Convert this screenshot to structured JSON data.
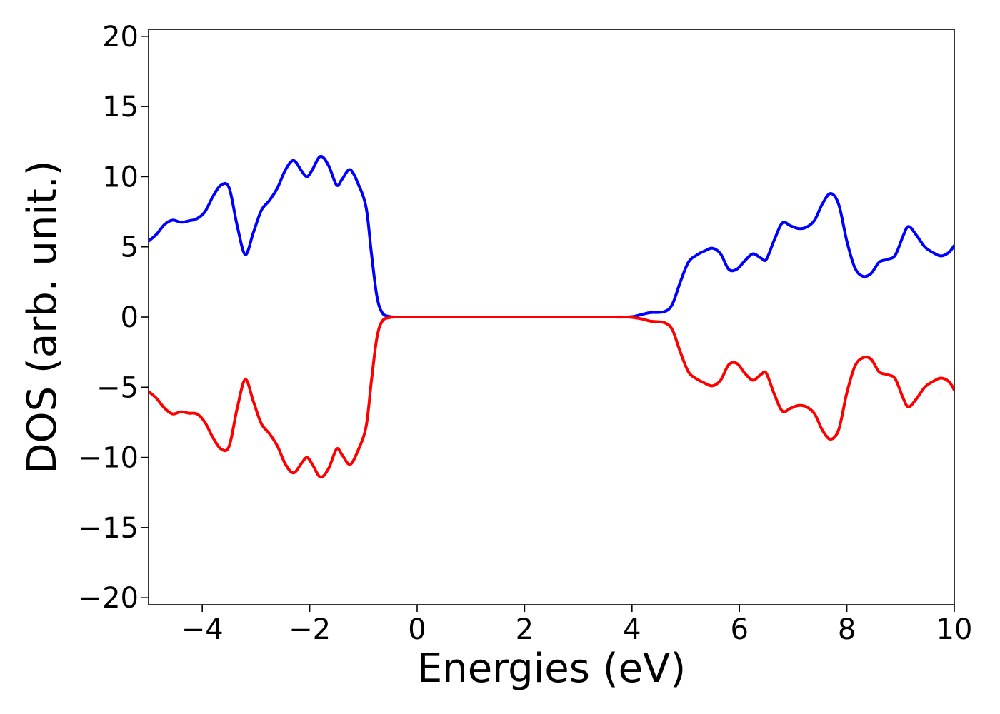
{
  "chart_data": {
    "type": "line",
    "title": "",
    "xlabel": "Energies (eV)",
    "ylabel": "DOS (arb. unit.)",
    "xlim": [
      -5,
      10
    ],
    "ylim": [
      -20.5,
      20.5
    ],
    "grid": false,
    "legend": "none",
    "x_ticks": [
      -4,
      -2,
      0,
      2,
      4,
      6,
      8,
      10
    ],
    "x_tick_labels": [
      "−4",
      "−2",
      "0",
      "2",
      "4",
      "6",
      "8",
      "10"
    ],
    "y_ticks": [
      -20,
      -15,
      -10,
      -5,
      0,
      5,
      10,
      15,
      20
    ],
    "y_tick_labels": [
      "−20",
      "−15",
      "−10",
      "−5",
      "0",
      "5",
      "10",
      "15",
      "20"
    ],
    "series": [
      {
        "color": "#0000ff",
        "points": [
          [
            -5.0,
            5.4
          ],
          [
            -4.85,
            5.9
          ],
          [
            -4.7,
            6.6
          ],
          [
            -4.55,
            6.9
          ],
          [
            -4.4,
            6.75
          ],
          [
            -4.25,
            6.85
          ],
          [
            -4.1,
            7.0
          ],
          [
            -3.95,
            7.5
          ],
          [
            -3.8,
            8.6
          ],
          [
            -3.65,
            9.4
          ],
          [
            -3.5,
            9.2
          ],
          [
            -3.35,
            6.5
          ],
          [
            -3.2,
            4.45
          ],
          [
            -3.05,
            6.0
          ],
          [
            -2.9,
            7.6
          ],
          [
            -2.75,
            8.3
          ],
          [
            -2.6,
            9.2
          ],
          [
            -2.45,
            10.5
          ],
          [
            -2.3,
            11.15
          ],
          [
            -2.15,
            10.4
          ],
          [
            -2.05,
            10.0
          ],
          [
            -1.95,
            10.5
          ],
          [
            -1.8,
            11.45
          ],
          [
            -1.65,
            10.8
          ],
          [
            -1.5,
            9.4
          ],
          [
            -1.4,
            9.8
          ],
          [
            -1.25,
            10.5
          ],
          [
            -1.1,
            9.5
          ],
          [
            -0.95,
            7.8
          ],
          [
            -0.85,
            4.5
          ],
          [
            -0.75,
            1.5
          ],
          [
            -0.65,
            0.3
          ],
          [
            -0.5,
            0.03
          ],
          [
            -0.3,
            0.0
          ],
          [
            0.0,
            0.0
          ],
          [
            1.0,
            0.0
          ],
          [
            2.0,
            0.0
          ],
          [
            3.0,
            0.0
          ],
          [
            3.5,
            0.0
          ],
          [
            3.9,
            0.0
          ],
          [
            4.05,
            0.05
          ],
          [
            4.2,
            0.2
          ],
          [
            4.35,
            0.32
          ],
          [
            4.6,
            0.38
          ],
          [
            4.75,
            0.9
          ],
          [
            4.9,
            2.5
          ],
          [
            5.05,
            3.9
          ],
          [
            5.2,
            4.4
          ],
          [
            5.35,
            4.7
          ],
          [
            5.5,
            4.9
          ],
          [
            5.65,
            4.5
          ],
          [
            5.8,
            3.4
          ],
          [
            5.95,
            3.4
          ],
          [
            6.1,
            4.0
          ],
          [
            6.25,
            4.5
          ],
          [
            6.4,
            4.2
          ],
          [
            6.5,
            4.1
          ],
          [
            6.65,
            5.5
          ],
          [
            6.8,
            6.7
          ],
          [
            6.95,
            6.5
          ],
          [
            7.1,
            6.3
          ],
          [
            7.25,
            6.4
          ],
          [
            7.4,
            6.9
          ],
          [
            7.55,
            8.1
          ],
          [
            7.7,
            8.8
          ],
          [
            7.85,
            8.0
          ],
          [
            8.0,
            5.4
          ],
          [
            8.15,
            3.5
          ],
          [
            8.3,
            2.9
          ],
          [
            8.45,
            3.1
          ],
          [
            8.6,
            3.9
          ],
          [
            8.75,
            4.1
          ],
          [
            8.9,
            4.4
          ],
          [
            9.05,
            5.8
          ],
          [
            9.15,
            6.45
          ],
          [
            9.3,
            5.8
          ],
          [
            9.45,
            5.0
          ],
          [
            9.6,
            4.6
          ],
          [
            9.75,
            4.35
          ],
          [
            9.9,
            4.6
          ],
          [
            10.0,
            5.1
          ]
        ]
      },
      {
        "color": "#ff0000",
        "points": [
          [
            -5.0,
            -5.3
          ],
          [
            -4.85,
            -5.8
          ],
          [
            -4.7,
            -6.5
          ],
          [
            -4.55,
            -6.9
          ],
          [
            -4.4,
            -6.75
          ],
          [
            -4.25,
            -6.85
          ],
          [
            -4.1,
            -6.9
          ],
          [
            -3.95,
            -7.5
          ],
          [
            -3.8,
            -8.6
          ],
          [
            -3.65,
            -9.4
          ],
          [
            -3.5,
            -9.2
          ],
          [
            -3.35,
            -6.5
          ],
          [
            -3.2,
            -4.45
          ],
          [
            -3.05,
            -6.0
          ],
          [
            -2.9,
            -7.6
          ],
          [
            -2.75,
            -8.3
          ],
          [
            -2.6,
            -9.2
          ],
          [
            -2.45,
            -10.5
          ],
          [
            -2.3,
            -11.1
          ],
          [
            -2.15,
            -10.4
          ],
          [
            -2.05,
            -10.0
          ],
          [
            -1.95,
            -10.5
          ],
          [
            -1.8,
            -11.4
          ],
          [
            -1.65,
            -10.8
          ],
          [
            -1.5,
            -9.4
          ],
          [
            -1.4,
            -9.8
          ],
          [
            -1.25,
            -10.5
          ],
          [
            -1.1,
            -9.5
          ],
          [
            -0.95,
            -7.8
          ],
          [
            -0.85,
            -4.5
          ],
          [
            -0.75,
            -1.5
          ],
          [
            -0.65,
            -0.3
          ],
          [
            -0.5,
            -0.03
          ],
          [
            -0.3,
            0.0
          ],
          [
            0.0,
            0.0
          ],
          [
            1.0,
            0.0
          ],
          [
            2.0,
            0.0
          ],
          [
            3.0,
            0.0
          ],
          [
            3.5,
            0.0
          ],
          [
            3.9,
            0.0
          ],
          [
            4.05,
            -0.05
          ],
          [
            4.2,
            -0.15
          ],
          [
            4.35,
            -0.3
          ],
          [
            4.6,
            -0.4
          ],
          [
            4.75,
            -0.9
          ],
          [
            4.9,
            -2.5
          ],
          [
            5.05,
            -3.9
          ],
          [
            5.2,
            -4.4
          ],
          [
            5.35,
            -4.7
          ],
          [
            5.5,
            -4.9
          ],
          [
            5.65,
            -4.5
          ],
          [
            5.8,
            -3.4
          ],
          [
            5.95,
            -3.3
          ],
          [
            6.1,
            -4.0
          ],
          [
            6.25,
            -4.5
          ],
          [
            6.4,
            -4.1
          ],
          [
            6.5,
            -4.0
          ],
          [
            6.65,
            -5.5
          ],
          [
            6.8,
            -6.7
          ],
          [
            6.95,
            -6.5
          ],
          [
            7.1,
            -6.3
          ],
          [
            7.25,
            -6.4
          ],
          [
            7.4,
            -6.9
          ],
          [
            7.55,
            -8.1
          ],
          [
            7.7,
            -8.7
          ],
          [
            7.85,
            -8.0
          ],
          [
            8.0,
            -5.4
          ],
          [
            8.15,
            -3.5
          ],
          [
            8.3,
            -2.9
          ],
          [
            8.45,
            -3.0
          ],
          [
            8.6,
            -3.9
          ],
          [
            8.75,
            -4.1
          ],
          [
            8.9,
            -4.4
          ],
          [
            9.05,
            -5.8
          ],
          [
            9.15,
            -6.4
          ],
          [
            9.3,
            -5.8
          ],
          [
            9.45,
            -5.0
          ],
          [
            9.6,
            -4.6
          ],
          [
            9.75,
            -4.35
          ],
          [
            9.9,
            -4.6
          ],
          [
            10.0,
            -5.2
          ]
        ]
      }
    ]
  }
}
